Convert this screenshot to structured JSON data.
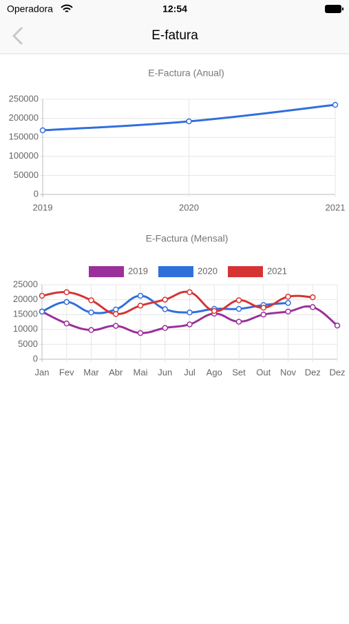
{
  "status_bar": {
    "carrier": "Operadora",
    "time": "12:54"
  },
  "nav": {
    "title": "E-fatura"
  },
  "chart_data": [
    {
      "type": "line",
      "title": "E-Factura (Anual)",
      "categories": [
        "2019",
        "2020",
        "2021"
      ],
      "series": [
        {
          "name": null,
          "color": "#2f6fdc",
          "values": [
            168500,
            192000,
            235500
          ]
        }
      ],
      "ylim": [
        0,
        250000
      ],
      "yticks": [
        0,
        50000,
        100000,
        150000,
        200000,
        250000
      ],
      "grid": true,
      "smooth": true,
      "legend": null
    },
    {
      "type": "line",
      "title": "E-Factura (Mensal)",
      "categories": [
        "Jan",
        "Fev",
        "Mar",
        "Abr",
        "Mai",
        "Jun",
        "Jul",
        "Ago",
        "Set",
        "Out",
        "Nov",
        "Dez",
        "Dez"
      ],
      "series": [
        {
          "name": "2019",
          "color": "#9b2f9b",
          "values": [
            16000,
            12000,
            9800,
            11200,
            8800,
            10500,
            11700,
            15300,
            12600,
            15000,
            16000,
            17500,
            11300
          ]
        },
        {
          "name": "2020",
          "color": "#2f6fdc",
          "values": [
            16000,
            19200,
            15700,
            16700,
            21300,
            16800,
            15700,
            16900,
            16900,
            18200,
            18900,
            null,
            null
          ]
        },
        {
          "name": "2021",
          "color": "#d63333",
          "values": [
            21300,
            22500,
            19800,
            15200,
            18000,
            20000,
            22500,
            16200,
            19800,
            17300,
            21000,
            20800,
            null
          ]
        }
      ],
      "ylim": [
        0,
        25000
      ],
      "yticks": [
        0,
        5000,
        10000,
        15000,
        20000,
        25000
      ],
      "grid": true,
      "smooth": true,
      "legend": "top"
    }
  ]
}
